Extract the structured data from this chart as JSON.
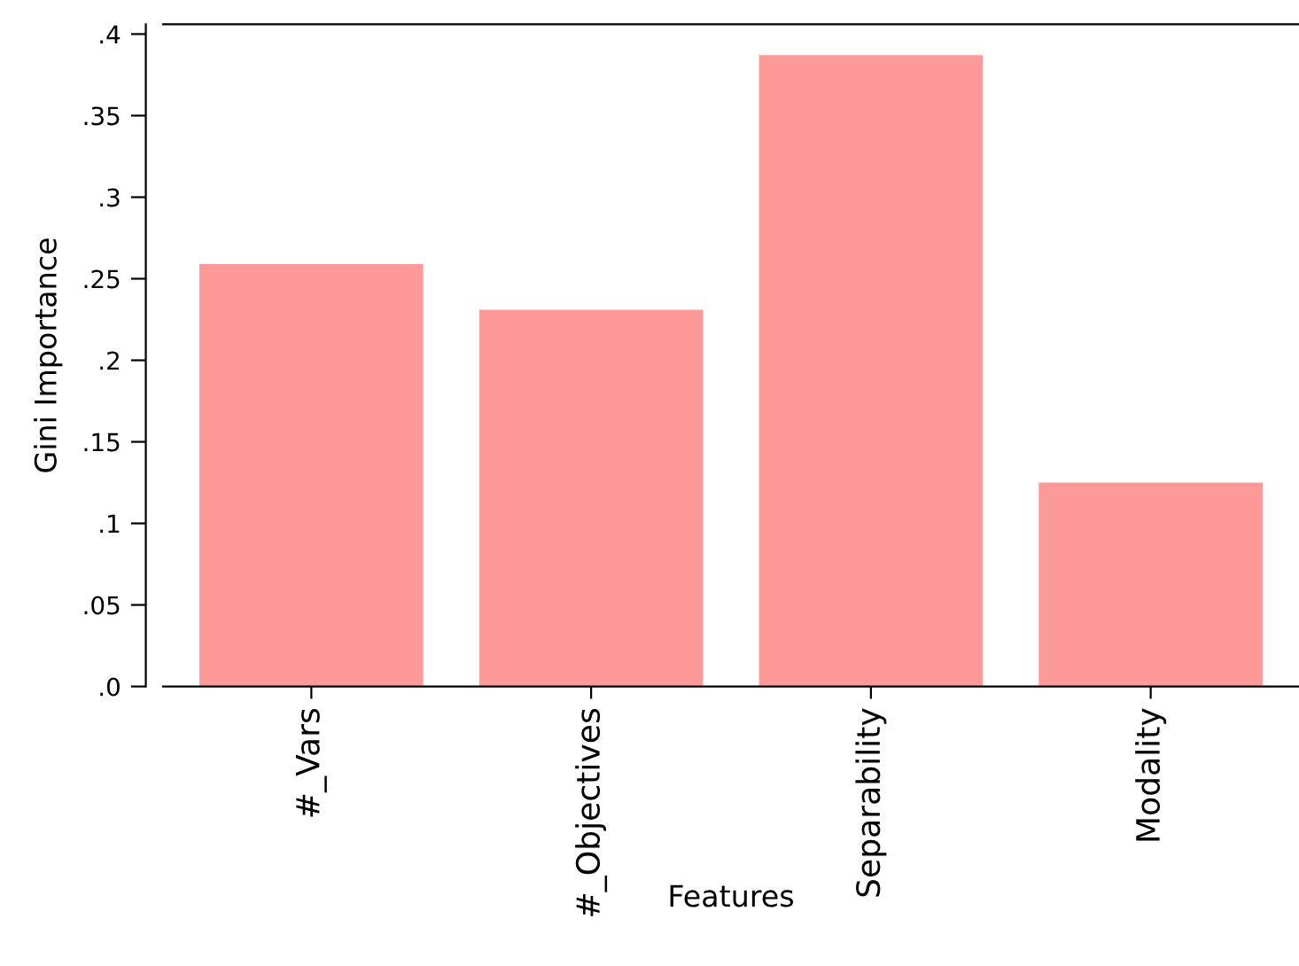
{
  "chart_data": {
    "type": "bar",
    "xlabel": "Features",
    "ylabel": "Gini Importance",
    "categories": [
      "#_Vars",
      "#_Objectives",
      "Separability",
      "Modality"
    ],
    "values": [
      0.259,
      0.231,
      0.387,
      0.125
    ],
    "color": "#fc9a9a",
    "ylim": [
      0,
      0.406
    ],
    "yticks": [
      {
        "value": 0,
        "label": ".0"
      },
      {
        "value": 0.05,
        "label": ".05"
      },
      {
        "value": 0.1,
        "label": ".1"
      },
      {
        "value": 0.15,
        "label": ".15"
      },
      {
        "value": 0.2,
        "label": ".2"
      },
      {
        "value": 0.25,
        "label": ".25"
      },
      {
        "value": 0.3,
        "label": ".3"
      },
      {
        "value": 0.35,
        "label": ".35"
      },
      {
        "value": 0.4,
        "label": ".4"
      }
    ],
    "grid": false,
    "legend": false
  }
}
